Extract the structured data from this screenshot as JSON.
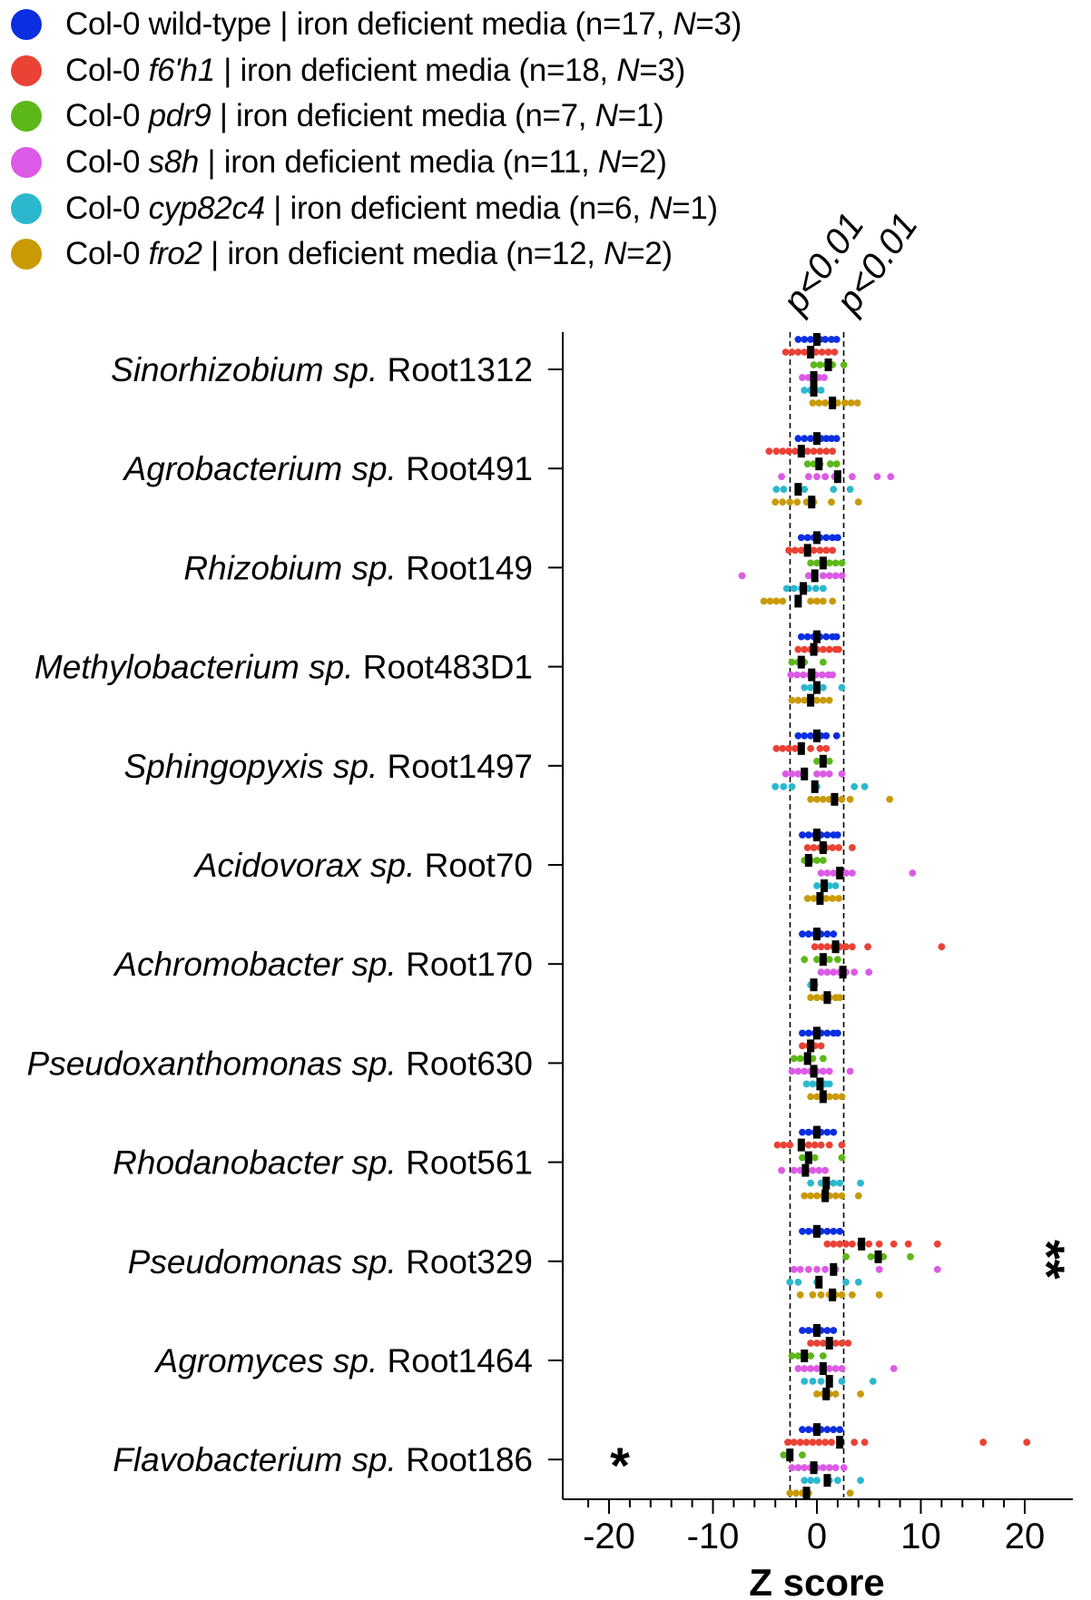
{
  "legend": [
    {
      "prefix": "Col-0 ",
      "genotype": "wild-type",
      "italic": false,
      "media": " | iron deficient media (n=17, ",
      "N_label": "N",
      "N_value": "=3)",
      "color": "#0b2fe0"
    },
    {
      "prefix": "Col-0 ",
      "genotype": "f6'h1",
      "italic": true,
      "media": " | iron deficient media (n=18, ",
      "N_label": "N",
      "N_value": "=3)",
      "color": "#ea4235"
    },
    {
      "prefix": "Col-0 ",
      "genotype": "pdr9",
      "italic": true,
      "media": " | iron deficient media (n=7, ",
      "N_label": "N",
      "N_value": "=1)",
      "color": "#5cb819"
    },
    {
      "prefix": "Col-0 ",
      "genotype": "s8h",
      "italic": true,
      "media": " | iron deficient media (n=11, ",
      "N_label": "N",
      "N_value": "=2)",
      "color": "#dc5ae6"
    },
    {
      "prefix": "Col-0 ",
      "genotype": "cyp82c4",
      "italic": true,
      "media": " | iron deficient media (n=6, ",
      "N_label": "N",
      "N_value": "=1)",
      "color": "#2bb8cf"
    },
    {
      "prefix": "Col-0 ",
      "genotype": "fro2",
      "italic": true,
      "media": " | iron deficient media (n=12, ",
      "N_label": "N",
      "N_value": "=2)",
      "color": "#c99a06"
    }
  ],
  "chart_data": {
    "type": "scatter",
    "xlabel": "Z score",
    "xlim": [
      -22,
      22
    ],
    "xticks": [
      -20,
      -10,
      0,
      10,
      20
    ],
    "threshold_lines": [
      -2.58,
      2.58
    ],
    "threshold_labels": [
      "p<0.01",
      "p<0.01"
    ],
    "strains": [
      {
        "genus": "Sinorhizobium sp.",
        "root": " Root1312",
        "significance": "",
        "groups": [
          {
            "points": [
              -1.8,
              -1.2,
              -0.6,
              -0.1,
              0.3,
              0.8,
              1.4,
              1.9
            ],
            "median": 0
          },
          {
            "points": [
              -3,
              -2.4,
              -1.8,
              -1.2,
              -0.6,
              -0.1,
              0.5,
              1.1,
              1.7
            ],
            "median": -0.6
          },
          {
            "points": [
              -0.3,
              0.3,
              0.9,
              1.5,
              2.6
            ],
            "median": 1.1
          },
          {
            "points": [
              -1.4,
              -0.8,
              -0.3,
              0.2,
              0.7
            ],
            "median": -0.3
          },
          {
            "points": [
              -1.2,
              -0.6,
              -0.1,
              0.4
            ],
            "median": -0.3
          },
          {
            "points": [
              -0.4,
              0.2,
              0.8,
              1.4,
              2,
              2.7,
              3.3,
              3.9
            ],
            "median": 1.5
          }
        ]
      },
      {
        "genus": "Agrobacterium sp.",
        "root": " Root491",
        "significance": "",
        "groups": [
          {
            "points": [
              -1.8,
              -1.2,
              -0.6,
              -0.1,
              0.4,
              0.9,
              1.4,
              1.9
            ],
            "median": 0
          },
          {
            "points": [
              -4.6,
              -3.9,
              -3.3,
              -2.7,
              -2.1,
              -1.5,
              -0.9,
              -0.3,
              0.3,
              0.9,
              1.5
            ],
            "median": -1.5
          },
          {
            "points": [
              -0.9,
              -0.3,
              0.3,
              1.3,
              1.9
            ],
            "median": 0.2
          },
          {
            "points": [
              -3.4,
              -0.8,
              0,
              0.8,
              1.7,
              3.4,
              5.8,
              7.1
            ],
            "median": 2
          },
          {
            "points": [
              -3.9,
              -3.2,
              -1.2,
              1.6,
              3.2
            ],
            "median": -1.8
          },
          {
            "points": [
              -4,
              -3.3,
              -2.6,
              -1.9,
              -1,
              -0.3,
              1.4,
              4
            ],
            "median": -0.5
          }
        ]
      },
      {
        "genus": "Rhizobium sp.",
        "root": " Root149",
        "significance": "",
        "groups": [
          {
            "points": [
              -1.5,
              -0.9,
              -0.3,
              0.3,
              0.9,
              1.5,
              2
            ],
            "median": 0
          },
          {
            "points": [
              -2.7,
              -2.1,
              -1.5,
              -0.9,
              -0.3,
              0.3,
              0.9,
              1.5
            ],
            "median": -0.9
          },
          {
            "points": [
              -0.6,
              0,
              0.6,
              1.2,
              1.8,
              2.4
            ],
            "median": 0.6
          },
          {
            "points": [
              -7.2,
              -0.8,
              -0.2,
              0.6,
              1.2,
              1.8,
              2.4
            ],
            "median": -0.2
          },
          {
            "points": [
              -2.9,
              -2.2,
              -1.5,
              -0.8,
              -0.1,
              0.6
            ],
            "median": -1.3
          },
          {
            "points": [
              -5.1,
              -4.5,
              -3.9,
              -3.3,
              -1.8,
              -0.6,
              0,
              0.6,
              1.5
            ],
            "median": -1.8
          }
        ]
      },
      {
        "genus": "Methylobacterium sp.",
        "root": " Root483D1",
        "significance": "",
        "groups": [
          {
            "points": [
              -1.5,
              -0.9,
              -0.3,
              0.3,
              0.9,
              1.5,
              1.9
            ],
            "median": 0
          },
          {
            "points": [
              -1.8,
              -1.2,
              -0.6,
              0,
              0.6,
              1.2,
              1.8,
              2.1
            ],
            "median": -0.3
          },
          {
            "points": [
              -2.4,
              -1.8,
              -1.2,
              0.6
            ],
            "median": -1.5
          },
          {
            "points": [
              -2.5,
              -1.9,
              -1.3,
              -0.7,
              -0.1,
              0.5,
              1.1,
              1.5
            ],
            "median": -0.5
          },
          {
            "points": [
              -1.2,
              -0.6,
              0,
              0.6,
              2.4
            ],
            "median": 0
          },
          {
            "points": [
              -2.4,
              -1.8,
              -1.2,
              -0.6,
              0,
              0.6,
              1.2
            ],
            "median": -0.6
          }
        ]
      },
      {
        "genus": "Sphingopyxis sp.",
        "root": " Root1497",
        "significance": "",
        "groups": [
          {
            "points": [
              -1.8,
              -1.2,
              -0.6,
              -0.1,
              0.4,
              0.9,
              1.9
            ],
            "median": 0
          },
          {
            "points": [
              -3.9,
              -3.3,
              -2.7,
              -2.1,
              -1.5,
              -0.6,
              0.3,
              0.9
            ],
            "median": -1.5
          },
          {
            "points": [
              0,
              0.6,
              1.2
            ],
            "median": 0.6
          },
          {
            "points": [
              -3,
              -2.4,
              -1.8,
              -1.2,
              0,
              0.6,
              1.2,
              2.4
            ],
            "median": -1.2
          },
          {
            "points": [
              -4,
              -3.2,
              -2.4,
              0,
              3.6,
              4.6
            ],
            "median": -0.2
          },
          {
            "points": [
              -0.6,
              0,
              0.6,
              1.2,
              1.8,
              2.4,
              3.2,
              7
            ],
            "median": 1.7
          }
        ]
      },
      {
        "genus": "Acidovorax sp.",
        "root": " Root70",
        "significance": "",
        "groups": [
          {
            "points": [
              -1.4,
              -0.8,
              -0.2,
              0.4,
              1,
              1.6,
              2
            ],
            "median": 0
          },
          {
            "points": [
              -0.9,
              -0.3,
              0.3,
              0.9,
              1.5,
              2.1,
              3.4
            ],
            "median": 0.6
          },
          {
            "points": [
              -1.2,
              -0.6,
              0,
              0.6
            ],
            "median": -0.8
          },
          {
            "points": [
              0.4,
              1,
              1.6,
              2.2,
              2.8,
              3.4,
              9.2
            ],
            "median": 2.2
          },
          {
            "points": [
              0,
              0.6,
              1.2,
              1.8
            ],
            "median": 0.7
          },
          {
            "points": [
              -0.9,
              -0.3,
              0.3,
              0.9,
              1.5,
              2.1
            ],
            "median": 0.3
          }
        ]
      },
      {
        "genus": "Achromobacter sp.",
        "root": " Root170",
        "significance": "",
        "groups": [
          {
            "points": [
              -1.4,
              -0.8,
              -0.2,
              0.4,
              1,
              1.6
            ],
            "median": 0
          },
          {
            "points": [
              -0.2,
              0.4,
              1,
              1.6,
              2.2,
              2.8,
              3.4,
              4.9,
              12
            ],
            "median": 1.8
          },
          {
            "points": [
              -1.2,
              0,
              0.6,
              1.2,
              2
            ],
            "median": 0.6
          },
          {
            "points": [
              0.4,
              1,
              1.6,
              2.2,
              2.8,
              3.6,
              5
            ],
            "median": 2.5
          },
          {
            "points": [
              -0.6,
              -0.2
            ],
            "median": -0.3
          },
          {
            "points": [
              -0.6,
              0,
              0.6,
              1.2,
              1.8,
              2.2
            ],
            "median": 1
          }
        ]
      },
      {
        "genus": "Pseudoxanthomonas sp.",
        "root": " Root630",
        "significance": "",
        "groups": [
          {
            "points": [
              -1.4,
              -0.8,
              -0.2,
              0.4,
              1,
              1.6,
              2
            ],
            "median": 0
          },
          {
            "points": [
              -1.4,
              -0.8,
              -0.2,
              0.4
            ],
            "median": -0.6
          },
          {
            "points": [
              -2.2,
              -1.6,
              -1,
              -0.4,
              0.6
            ],
            "median": -0.9
          },
          {
            "points": [
              -2.4,
              -1.8,
              -1.2,
              -0.6,
              0,
              0.6,
              1.2,
              3.2
            ],
            "median": -0.3
          },
          {
            "points": [
              -1,
              -0.4,
              0.2,
              0.8,
              1.2
            ],
            "median": 0.3
          },
          {
            "points": [
              -0.6,
              0,
              0.6,
              1.2,
              1.8,
              2.4
            ],
            "median": 0.6
          }
        ]
      },
      {
        "genus": "Rhodanobacter sp.",
        "root": " Root561",
        "significance": "",
        "groups": [
          {
            "points": [
              -1.4,
              -0.8,
              -0.2,
              0.4,
              1,
              1.6
            ],
            "median": 0
          },
          {
            "points": [
              -3.8,
              -3.2,
              -2.6,
              -1.4,
              -0.8,
              -0.2,
              0.4,
              1.2,
              2.4
            ],
            "median": -1.5
          },
          {
            "points": [
              -1.4,
              -0.8,
              -0.2,
              2.4
            ],
            "median": -0.8
          },
          {
            "points": [
              -3.4,
              -2.2,
              -1.6,
              -1,
              -0.4,
              0.2,
              0.8
            ],
            "median": -1.1
          },
          {
            "points": [
              -0.6,
              0.4,
              1,
              1.6,
              2.2,
              4.2
            ],
            "median": 0.9
          },
          {
            "points": [
              -1.2,
              -0.6,
              0,
              0.6,
              1.2,
              1.8,
              2.4,
              4
            ],
            "median": 0.8
          }
        ]
      },
      {
        "genus": "Pseudomonas sp.",
        "root": " Root329",
        "significance": "**",
        "groups": [
          {
            "points": [
              -1.4,
              -0.8,
              -0.2,
              0.4,
              1,
              1.6,
              2.2
            ],
            "median": 0
          },
          {
            "points": [
              1,
              1.6,
              2.2,
              2.8,
              3.4,
              4.2,
              5,
              6,
              7.4,
              8.8,
              11.6
            ],
            "median": 4.3
          },
          {
            "points": [
              2.8,
              5.2,
              5.8,
              6.4,
              9
            ],
            "median": 5.9
          },
          {
            "points": [
              -2.2,
              -1.6,
              -0.8,
              0,
              0.8,
              1.8,
              6,
              11.6
            ],
            "median": 1.6
          },
          {
            "points": [
              -2.6,
              -1.8,
              0,
              2.8,
              4
            ],
            "median": 0.2
          },
          {
            "points": [
              -1.6,
              -0.4,
              0.4,
              1.2,
              1.8,
              2.4,
              3.4,
              6
            ],
            "median": 1.5
          }
        ]
      },
      {
        "genus": "Agromyces sp.",
        "root": " Root1464",
        "significance": "",
        "groups": [
          {
            "points": [
              -1.4,
              -0.8,
              -0.2,
              0.4,
              1,
              1.6
            ],
            "median": 0
          },
          {
            "points": [
              -0.6,
              0,
              0.6,
              1.2,
              1.8,
              2.4,
              3
            ],
            "median": 1.2
          },
          {
            "points": [
              -2.4,
              -1.8,
              -1.2,
              -0.6,
              0.6
            ],
            "median": -1.2
          },
          {
            "points": [
              -1.8,
              -1.2,
              -0.6,
              0,
              0.6,
              1.2,
              1.8,
              2.4,
              7.4
            ],
            "median": 0.6
          },
          {
            "points": [
              -1.2,
              -0.4,
              0.4,
              1.2,
              2.4,
              5.4
            ],
            "median": 1.2
          },
          {
            "points": [
              0,
              0.6,
              1.2,
              1.8,
              4.2
            ],
            "median": 0.9
          }
        ]
      },
      {
        "genus": "Flavobacterium sp.",
        "root": " Root186",
        "significance": "*",
        "groups": [
          {
            "points": [
              -1.4,
              -0.8,
              -0.2,
              0.4,
              1,
              1.6,
              2.2
            ],
            "median": 0
          },
          {
            "points": [
              -2.8,
              -2.2,
              -1.6,
              -1,
              -0.4,
              0.2,
              0.8,
              1.4,
              2.2,
              3.6,
              4.6,
              16,
              20.2
            ],
            "median": 2.2
          },
          {
            "points": [
              -3.2,
              -2.6,
              -1.4
            ],
            "median": -2.6
          },
          {
            "points": [
              -2.4,
              -1.8,
              -1.2,
              -0.6,
              0,
              0.6,
              1.2,
              1.8,
              2.6
            ],
            "median": -0.3
          },
          {
            "points": [
              -1.2,
              -0.6,
              0,
              1.2,
              2,
              4.2
            ],
            "median": 1
          },
          {
            "points": [
              -2.6,
              -2,
              -1.4,
              -0.8,
              3.2
            ],
            "median": -1
          }
        ]
      }
    ]
  }
}
